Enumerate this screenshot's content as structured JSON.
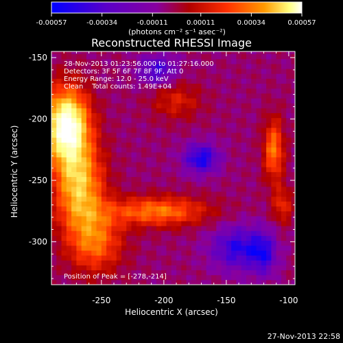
{
  "colorbar": {
    "tick_labels": [
      "-0.00057",
      "-0.00034",
      "-0.00011",
      "0.00011",
      "0.00034",
      "0.00057"
    ],
    "unit_label": "(photons cm⁻² s⁻¹ asec⁻²)"
  },
  "title": "Reconstructed RHESSI Image",
  "annotations": {
    "time_range": "28-Nov-2013 01:23:56.000 to 01:27:16.000",
    "detectors": "Detectors: 3F 5F 6F 7F 8F 9F, Att 0",
    "energy": "Energy Range: 12.0 - 25.0 keV",
    "clean": "Clean    Total counts: 1.49E+04",
    "peak": "Position of Peak = [-278,-214]"
  },
  "footer_timestamp": "27-Nov-2013 22:58",
  "chart_data": {
    "type": "heatmap",
    "title": "Reconstructed RHESSI Image",
    "xlabel": "Heliocentric X (arcsec)",
    "ylabel": "Heliocentric Y (arcsec)",
    "xlim": [
      -290,
      -95
    ],
    "ylim": [
      -335,
      -145
    ],
    "x_ticks": [
      -250,
      -200,
      -150,
      -100
    ],
    "y_ticks": [
      -150,
      -200,
      -250,
      -300
    ],
    "x_tick_labels": [
      "-250",
      "-200",
      "-150",
      "-100"
    ],
    "y_tick_labels": [
      "-150",
      "-200",
      "-250",
      "-300"
    ],
    "colorbar_range": [
      -0.00057,
      0.00057
    ],
    "colormap": [
      "#0000ff",
      "#5a00c8",
      "#8800a0",
      "#b00000",
      "#ff3000",
      "#ff9a00",
      "#ffff80",
      "#ffffff"
    ],
    "peak_position": [
      -278,
      -214
    ],
    "sources": [
      {
        "x": -278,
        "y": -205,
        "sx": 18,
        "sy": 30,
        "amp": 1.0
      },
      {
        "x": -268,
        "y": -255,
        "sx": 20,
        "sy": 35,
        "amp": 0.65
      },
      {
        "x": -255,
        "y": -300,
        "sx": 22,
        "sy": 25,
        "amp": 0.45
      },
      {
        "x": -205,
        "y": -275,
        "sx": 40,
        "sy": 12,
        "amp": 0.5
      },
      {
        "x": -112,
        "y": -225,
        "sx": 8,
        "sy": 25,
        "amp": 0.5
      },
      {
        "x": -105,
        "y": -270,
        "sx": 8,
        "sy": 15,
        "amp": 0.3
      },
      {
        "x": -190,
        "y": -185,
        "sx": 20,
        "sy": 15,
        "amp": 0.25
      }
    ],
    "sinks": [
      {
        "x": -205,
        "y": -160,
        "sx": 15,
        "sy": 12,
        "amp": 0.35
      },
      {
        "x": -170,
        "y": -232,
        "sx": 14,
        "sy": 12,
        "amp": 0.45
      },
      {
        "x": -140,
        "y": -305,
        "sx": 22,
        "sy": 18,
        "amp": 0.4
      },
      {
        "x": -120,
        "y": -310,
        "sx": 10,
        "sy": 18,
        "amp": 0.3
      }
    ]
  }
}
